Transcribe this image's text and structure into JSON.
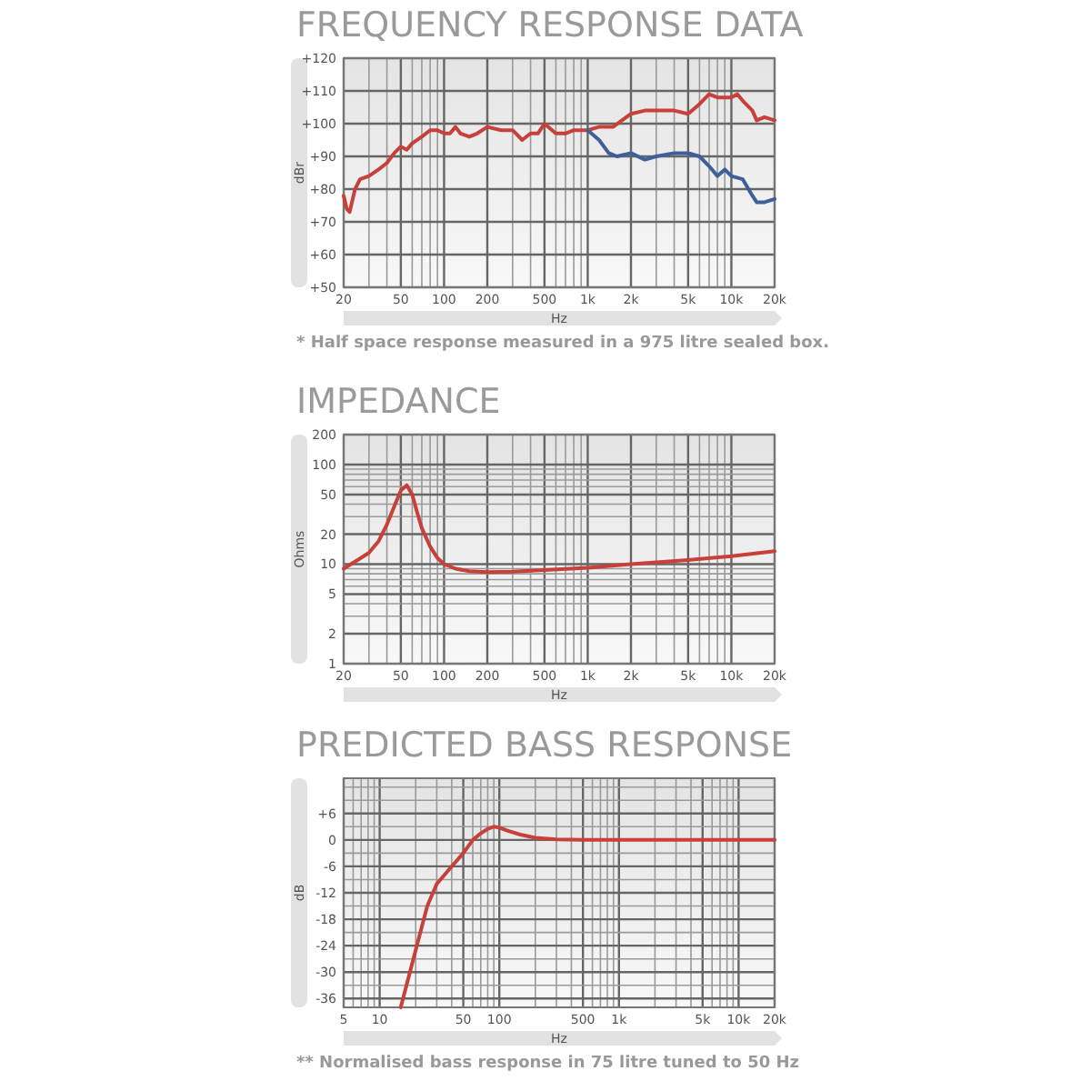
{
  "chart_data": [
    {
      "type": "line",
      "title": "FREQUENCY RESPONSE DATA",
      "xlabel": "Hz",
      "ylabel": "dBr",
      "log": "x",
      "grid": true,
      "annotations": [
        "* Half space response measured in a 975 litre sealed box."
      ],
      "xlim": [
        20,
        20000
      ],
      "ylim": [
        50,
        120
      ],
      "xticks": [
        20,
        {
          "value": 30,
          "label": null
        },
        {
          "value": 40,
          "label": null
        },
        50,
        {
          "value": 60,
          "label": null
        },
        {
          "value": 70,
          "label": null
        },
        {
          "value": 80,
          "label": null
        },
        {
          "value": 90,
          "label": null
        },
        100,
        200,
        {
          "value": 300,
          "label": null
        },
        {
          "value": 400,
          "label": null
        },
        500,
        {
          "value": 600,
          "label": null
        },
        {
          "value": 700,
          "label": null
        },
        {
          "value": 800,
          "label": null
        },
        {
          "value": 900,
          "label": null
        },
        {
          "value": 1000,
          "label": "1k"
        },
        {
          "value": 2000,
          "label": "2k"
        },
        {
          "value": 3000,
          "label": null
        },
        {
          "value": 4000,
          "label": null
        },
        {
          "value": 5000,
          "label": "5k"
        },
        {
          "value": 6000,
          "label": null
        },
        {
          "value": 7000,
          "label": null
        },
        {
          "value": 8000,
          "label": null
        },
        {
          "value": 9000,
          "label": null
        },
        {
          "value": 10000,
          "label": "10k"
        },
        {
          "value": 20000,
          "label": "20k"
        }
      ],
      "yticks": [
        {
          "value": 50,
          "label": "+50"
        },
        {
          "value": 60,
          "label": "+60"
        },
        {
          "value": 70,
          "label": "+70"
        },
        {
          "value": 80,
          "label": "+80"
        },
        {
          "value": 90,
          "label": "+90"
        },
        {
          "value": 100,
          "label": "+100"
        },
        {
          "value": 110,
          "label": "+110"
        },
        {
          "value": 120,
          "label": "+120"
        }
      ],
      "series": [
        {
          "color": "#c8403a",
          "x": [
            20,
            21,
            22,
            24,
            26,
            30,
            35,
            40,
            45,
            50,
            55,
            60,
            70,
            80,
            90,
            100,
            110,
            120,
            130,
            150,
            170,
            200,
            250,
            300,
            350,
            400,
            450,
            500,
            600,
            700,
            800,
            900,
            1000,
            1200,
            1500,
            2000,
            2500,
            3000,
            4000,
            5000,
            6000,
            7000,
            8000,
            10000,
            11000,
            12000,
            14000,
            15000,
            17000,
            20000
          ],
          "values": [
            78,
            74,
            73,
            80,
            83,
            84,
            86,
            88,
            91,
            93,
            92,
            94,
            96,
            98,
            98,
            97,
            97,
            99,
            97,
            96,
            97,
            99,
            98,
            98,
            95,
            97,
            97,
            100,
            97,
            97,
            98,
            98,
            98,
            99,
            99,
            103,
            104,
            104,
            104,
            103,
            106,
            109,
            108,
            108,
            109,
            107,
            104,
            101,
            102,
            101
          ]
        },
        {
          "color": "#3f5f9a",
          "x": [
            1000,
            1200,
            1400,
            1600,
            2000,
            2500,
            3000,
            4000,
            5000,
            6000,
            7000,
            8000,
            9000,
            10000,
            12000,
            14000,
            15000,
            17000,
            20000
          ],
          "values": [
            98,
            95,
            91,
            90,
            91,
            89,
            90,
            91,
            91,
            90,
            87,
            84,
            86,
            84,
            83,
            78,
            76,
            76,
            77
          ]
        }
      ]
    },
    {
      "type": "line",
      "title": "IMPEDANCE",
      "xlabel": "Hz",
      "ylabel": "Ohms",
      "log": "xy",
      "grid": true,
      "xlim": [
        20,
        20000
      ],
      "ylim": [
        1,
        200
      ],
      "xticks": [
        20,
        {
          "value": 30,
          "label": null
        },
        {
          "value": 40,
          "label": null
        },
        50,
        {
          "value": 60,
          "label": null
        },
        {
          "value": 70,
          "label": null
        },
        {
          "value": 80,
          "label": null
        },
        {
          "value": 90,
          "label": null
        },
        100,
        200,
        {
          "value": 300,
          "label": null
        },
        {
          "value": 400,
          "label": null
        },
        500,
        {
          "value": 600,
          "label": null
        },
        {
          "value": 700,
          "label": null
        },
        {
          "value": 800,
          "label": null
        },
        {
          "value": 900,
          "label": null
        },
        {
          "value": 1000,
          "label": "1k"
        },
        {
          "value": 2000,
          "label": "2k"
        },
        {
          "value": 3000,
          "label": null
        },
        {
          "value": 4000,
          "label": null
        },
        {
          "value": 5000,
          "label": "5k"
        },
        {
          "value": 6000,
          "label": null
        },
        {
          "value": 7000,
          "label": null
        },
        {
          "value": 8000,
          "label": null
        },
        {
          "value": 9000,
          "label": null
        },
        {
          "value": 10000,
          "label": "10k"
        },
        {
          "value": 20000,
          "label": "20k"
        }
      ],
      "yticks": [
        1,
        2,
        {
          "value": 3,
          "label": null
        },
        {
          "value": 4,
          "label": null
        },
        5,
        {
          "value": 6,
          "label": null
        },
        {
          "value": 7,
          "label": null
        },
        {
          "value": 8,
          "label": null
        },
        {
          "value": 9,
          "label": null
        },
        10,
        20,
        {
          "value": 30,
          "label": null
        },
        {
          "value": 40,
          "label": null
        },
        50,
        {
          "value": 60,
          "label": null
        },
        {
          "value": 70,
          "label": null
        },
        {
          "value": 80,
          "label": null
        },
        {
          "value": 90,
          "label": null
        },
        100,
        200
      ],
      "series": [
        {
          "color": "#c8403a",
          "x": [
            20,
            25,
            30,
            35,
            40,
            45,
            50,
            55,
            60,
            65,
            70,
            80,
            90,
            100,
            120,
            150,
            200,
            300,
            500,
            1000,
            2000,
            5000,
            10000,
            20000
          ],
          "values": [
            9,
            11,
            13,
            17,
            25,
            38,
            55,
            62,
            50,
            33,
            23,
            15,
            11.5,
            10,
            9,
            8.5,
            8.3,
            8.4,
            8.7,
            9.2,
            10,
            11,
            12,
            13.5
          ]
        }
      ]
    },
    {
      "type": "line",
      "title": "PREDICTED BASS RESPONSE",
      "xlabel": "Hz",
      "ylabel": "dB",
      "log": "x",
      "grid": true,
      "annotations": [
        "** Normalised bass response in 75 litre tuned to 50 Hz"
      ],
      "xlim": [
        5,
        20000
      ],
      "ylim": [
        -38,
        14
      ],
      "xticks": [
        5,
        {
          "value": 6,
          "label": null
        },
        {
          "value": 7,
          "label": null
        },
        {
          "value": 8,
          "label": null
        },
        {
          "value": 9,
          "label": null
        },
        10,
        {
          "value": 20,
          "label": null
        },
        {
          "value": 30,
          "label": null
        },
        {
          "value": 40,
          "label": null
        },
        50,
        {
          "value": 60,
          "label": null
        },
        {
          "value": 70,
          "label": null
        },
        {
          "value": 80,
          "label": null
        },
        {
          "value": 90,
          "label": null
        },
        100,
        {
          "value": 200,
          "label": null
        },
        {
          "value": 300,
          "label": null
        },
        {
          "value": 400,
          "label": null
        },
        500,
        {
          "value": 600,
          "label": null
        },
        {
          "value": 700,
          "label": null
        },
        {
          "value": 800,
          "label": null
        },
        {
          "value": 900,
          "label": null
        },
        {
          "value": 1000,
          "label": "1k"
        },
        {
          "value": 2000,
          "label": null
        },
        {
          "value": 3000,
          "label": null
        },
        {
          "value": 4000,
          "label": null
        },
        {
          "value": 5000,
          "label": "5k"
        },
        {
          "value": 6000,
          "label": null
        },
        {
          "value": 7000,
          "label": null
        },
        {
          "value": 8000,
          "label": null
        },
        {
          "value": 9000,
          "label": null
        },
        {
          "value": 10000,
          "label": "10k"
        },
        {
          "value": 20000,
          "label": "20k"
        }
      ],
      "yticks": [
        -36,
        {
          "value": -33,
          "label": null
        },
        -30,
        {
          "value": -27,
          "label": null
        },
        -24,
        {
          "value": -21,
          "label": null
        },
        -18,
        {
          "value": -15,
          "label": null
        },
        -12,
        {
          "value": -9,
          "label": null
        },
        -6,
        {
          "value": -3,
          "label": null
        },
        0,
        {
          "value": 3,
          "label": null
        },
        {
          "value": 6,
          "label": "+6"
        },
        {
          "value": 9,
          "label": null
        },
        {
          "value": 12,
          "label": null
        }
      ],
      "series": [
        {
          "color": "#c8403a",
          "x": [
            15,
            20,
            25,
            30,
            40,
            50,
            60,
            70,
            80,
            90,
            100,
            120,
            150,
            200,
            300,
            500,
            1000,
            20000
          ],
          "values": [
            -38,
            -25,
            -15,
            -10,
            -6,
            -3,
            0,
            1.5,
            2.5,
            3,
            2.8,
            2,
            1.2,
            0.5,
            0.1,
            0,
            0,
            0
          ]
        }
      ]
    }
  ]
}
